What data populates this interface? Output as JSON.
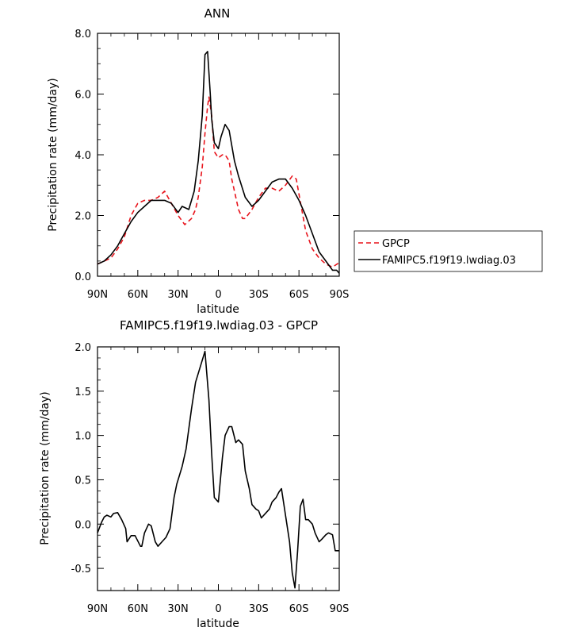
{
  "chart_data": [
    {
      "type": "line",
      "title": "ANN",
      "xlabel": "latitude",
      "ylabel": "Precipitation rate (mm/day)",
      "xlim": [
        90,
        -90
      ],
      "ylim": [
        0,
        8
      ],
      "xticks": [
        {
          "value": 90,
          "label": "90N"
        },
        {
          "value": 60,
          "label": "60N"
        },
        {
          "value": 30,
          "label": "30N"
        },
        {
          "value": 0,
          "label": "0"
        },
        {
          "value": -30,
          "label": "30S"
        },
        {
          "value": -60,
          "label": "60S"
        },
        {
          "value": -90,
          "label": "90S"
        }
      ],
      "yticks": [
        {
          "value": 0,
          "label": "0.0"
        },
        {
          "value": 2,
          "label": "2.0"
        },
        {
          "value": 4,
          "label": "4.0"
        },
        {
          "value": 6,
          "label": "6.0"
        },
        {
          "value": 8,
          "label": "8.0"
        }
      ],
      "legend_position": "right",
      "series": [
        {
          "name": "GPCP",
          "color": "#e8141c",
          "style": "dashed",
          "x": [
            90,
            85,
            80,
            75,
            70,
            65,
            60,
            55,
            50,
            45,
            40,
            35,
            30,
            25,
            20,
            17,
            15,
            12,
            10,
            8,
            7,
            5,
            3,
            0,
            -3,
            -5,
            -8,
            -10,
            -13,
            -15,
            -18,
            -20,
            -25,
            -30,
            -35,
            -40,
            -45,
            -50,
            -55,
            -58,
            -60,
            -65,
            -70,
            -75,
            -80,
            -85,
            -90
          ],
          "y": [
            0.4,
            0.5,
            0.6,
            0.9,
            1.3,
            2.0,
            2.4,
            2.5,
            2.5,
            2.6,
            2.8,
            2.4,
            2.0,
            1.7,
            1.9,
            2.2,
            2.6,
            3.6,
            4.7,
            5.6,
            5.9,
            5.3,
            4.1,
            3.9,
            4.0,
            4.0,
            3.8,
            3.2,
            2.6,
            2.2,
            1.9,
            1.9,
            2.2,
            2.6,
            2.9,
            2.9,
            2.8,
            3.0,
            3.3,
            3.2,
            2.7,
            1.5,
            0.9,
            0.6,
            0.4,
            0.3,
            0.45
          ]
        },
        {
          "name": "FAMIPC5.f19f19.lwdiag.03",
          "color": "#000000",
          "style": "solid",
          "x": [
            90,
            85,
            80,
            75,
            70,
            65,
            60,
            55,
            50,
            45,
            40,
            35,
            30,
            27,
            22,
            18,
            15,
            12,
            10,
            8,
            6,
            5,
            3,
            0,
            -2,
            -5,
            -8,
            -12,
            -15,
            -20,
            -25,
            -30,
            -35,
            -40,
            -45,
            -50,
            -55,
            -60,
            -65,
            -70,
            -75,
            -80,
            -85,
            -88,
            -90
          ],
          "y": [
            0.4,
            0.5,
            0.7,
            1.0,
            1.4,
            1.8,
            2.1,
            2.3,
            2.5,
            2.5,
            2.5,
            2.4,
            2.1,
            2.3,
            2.2,
            2.8,
            3.8,
            5.3,
            7.3,
            7.4,
            6.0,
            5.2,
            4.4,
            4.2,
            4.6,
            5.0,
            4.8,
            3.8,
            3.3,
            2.6,
            2.3,
            2.5,
            2.8,
            3.1,
            3.2,
            3.2,
            2.9,
            2.5,
            2.0,
            1.4,
            0.8,
            0.5,
            0.2,
            0.2,
            0.1
          ]
        }
      ]
    },
    {
      "type": "line",
      "title": "FAMIPC5.f19f19.lwdiag.03 - GPCP",
      "xlabel": "latitude",
      "ylabel": "Precipitation rate (mm/day)",
      "xlim": [
        90,
        -90
      ],
      "ylim": [
        -0.75,
        2.0
      ],
      "xticks": [
        {
          "value": 90,
          "label": "90N"
        },
        {
          "value": 60,
          "label": "60N"
        },
        {
          "value": 30,
          "label": "30N"
        },
        {
          "value": 0,
          "label": "0"
        },
        {
          "value": -30,
          "label": "30S"
        },
        {
          "value": -60,
          "label": "60S"
        },
        {
          "value": -90,
          "label": "90S"
        }
      ],
      "yticks": [
        {
          "value": -0.5,
          "label": "-0.5"
        },
        {
          "value": 0.0,
          "label": "0.0"
        },
        {
          "value": 0.5,
          "label": "0.5"
        },
        {
          "value": 1.0,
          "label": "1.0"
        },
        {
          "value": 1.5,
          "label": "1.5"
        },
        {
          "value": 2.0,
          "label": "2.0"
        }
      ],
      "series": [
        {
          "name": "FAMIPC5.f19f19.lwdiag.03 - GPCP",
          "color": "#000000",
          "style": "solid",
          "x": [
            90,
            87,
            85,
            83,
            80,
            78,
            75,
            72,
            69,
            68,
            65,
            62,
            58,
            57,
            55,
            52,
            50,
            47,
            45,
            42,
            39,
            36,
            33,
            31,
            29,
            27,
            24,
            20,
            17,
            13,
            10,
            7,
            5,
            3,
            0,
            -3,
            -5,
            -8,
            -10,
            -13,
            -15,
            -18,
            -20,
            -23,
            -25,
            -28,
            -30,
            -32,
            -35,
            -38,
            -40,
            -43,
            -45,
            -47,
            -50,
            -53,
            -55,
            -57,
            -59,
            -61,
            -63,
            -65,
            -67,
            -70,
            -72,
            -75,
            -77,
            -80,
            -82,
            -85,
            -87,
            -90
          ],
          "y": [
            -0.1,
            0.02,
            0.08,
            0.1,
            0.08,
            0.12,
            0.13,
            0.05,
            -0.05,
            -0.2,
            -0.13,
            -0.13,
            -0.25,
            -0.25,
            -0.1,
            0.0,
            -0.02,
            -0.2,
            -0.25,
            -0.2,
            -0.15,
            -0.05,
            0.3,
            0.45,
            0.55,
            0.65,
            0.85,
            1.3,
            1.6,
            1.8,
            1.95,
            1.4,
            0.8,
            0.3,
            0.25,
            0.75,
            1.0,
            1.1,
            1.1,
            0.92,
            0.95,
            0.9,
            0.6,
            0.4,
            0.22,
            0.17,
            0.15,
            0.07,
            0.12,
            0.17,
            0.25,
            0.3,
            0.36,
            0.4,
            0.1,
            -0.2,
            -0.55,
            -0.72,
            -0.3,
            0.2,
            0.28,
            0.05,
            0.05,
            0.0,
            -0.1,
            -0.2,
            -0.17,
            -0.12,
            -0.1,
            -0.12,
            -0.3,
            -0.3
          ]
        }
      ]
    }
  ]
}
